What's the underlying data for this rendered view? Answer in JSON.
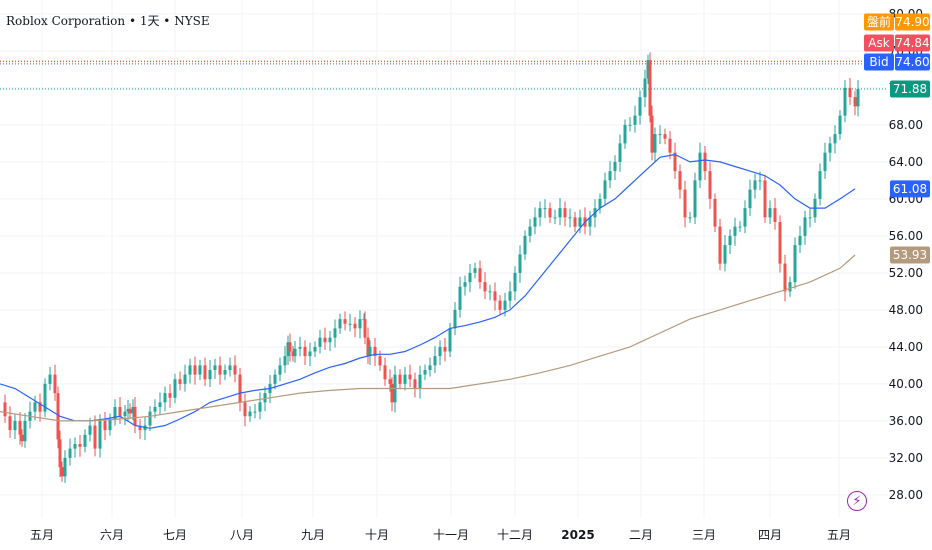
{
  "header": {
    "title": "Roblox Corporation • 1天 • NYSE"
  },
  "colors": {
    "up": "#26a69a",
    "down": "#ef5350",
    "ma_fast": "#2962ff",
    "ma_slow": "#b49a7c",
    "premarket": "#ff9800",
    "ask": "#f0515f",
    "bid": "#2962ff",
    "last": "#089981",
    "ma_fast_badge": "#2962ff",
    "ma_slow_badge": "#b49a7c"
  },
  "price_badges": [
    {
      "name": "premarket",
      "label": "盤前",
      "value": "74.90",
      "color": "#ff9800"
    },
    {
      "name": "ask",
      "label": "Ask",
      "value": "74.84",
      "color": "#f0515f"
    },
    {
      "name": "bid",
      "label": "Bid",
      "value": "74.60",
      "color": "#2962ff"
    },
    {
      "name": "last",
      "label": "",
      "value": "71.88",
      "color": "#089981"
    },
    {
      "name": "ma-fast",
      "label": "",
      "value": "61.08",
      "color": "#2962ff"
    },
    {
      "name": "ma-slow",
      "label": "",
      "value": "53.93",
      "color": "#b49a7c"
    }
  ],
  "chart_data": {
    "type": "candlestick",
    "title": "Roblox Corporation • 1天 • NYSE",
    "ylim": [
      25.5,
      81.5
    ],
    "y_ticks": [
      28,
      32,
      36,
      40,
      44,
      48,
      52,
      56,
      60,
      64,
      68,
      72,
      76,
      80
    ],
    "y_tick_labels": [
      "28.00",
      "32.00",
      "36.00",
      "40.00",
      "44.00",
      "48.00",
      "52.00",
      "56.00",
      "60.00",
      "64.00",
      "68.00",
      "72.00",
      "76.00",
      "80.00"
    ],
    "x_labels": [
      "五月",
      "六月",
      "七月",
      "八月",
      "九月",
      "十月",
      "十一月",
      "十二月",
      "2025",
      "二月",
      "三月",
      "四月",
      "五月"
    ],
    "x_label_bold_index": 8,
    "grid": true,
    "series": [
      {
        "name": "Price",
        "type": "close",
        "x": [
          0,
          5,
          10,
          15,
          20,
          22,
          25,
          30,
          35,
          40,
          45,
          50,
          55,
          58,
          60,
          62,
          65,
          70,
          75,
          80,
          85,
          90,
          95,
          100,
          105,
          110,
          115,
          120,
          125,
          128,
          130,
          133,
          135,
          140,
          145,
          150,
          155,
          160,
          165,
          170,
          175,
          180,
          185,
          190,
          195,
          200,
          205,
          210,
          215,
          220,
          225,
          230,
          235,
          240,
          245,
          250,
          255,
          260,
          265,
          270,
          275,
          280,
          285,
          288,
          290,
          293,
          295,
          300,
          305,
          310,
          315,
          320,
          325,
          330,
          335,
          340,
          345,
          350,
          355,
          360,
          364,
          365,
          368,
          370,
          375,
          380,
          385,
          390,
          392,
          395,
          400,
          405,
          410,
          415,
          420,
          425,
          430,
          435,
          440,
          445,
          450,
          455,
          460,
          465,
          470,
          475,
          480,
          485,
          490,
          495,
          500,
          505,
          510,
          515,
          520,
          525,
          530,
          535,
          540,
          545,
          550,
          555,
          560,
          565,
          570,
          575,
          580,
          585,
          590,
          595,
          600,
          605,
          610,
          615,
          620,
          625,
          630,
          635,
          640,
          645,
          648,
          650,
          652,
          655,
          660,
          665,
          670,
          675,
          680,
          685,
          690,
          695,
          700,
          705,
          710,
          715,
          720,
          725,
          730,
          735,
          740,
          745,
          750,
          755,
          760,
          765,
          770,
          775,
          780,
          785,
          790,
          795,
          800,
          805,
          810,
          815,
          820,
          825,
          830,
          835,
          840,
          845,
          850,
          855,
          858
        ],
        "y": [
          38,
          36.5,
          35,
          36,
          34.5,
          33.8,
          36,
          37,
          38,
          37,
          40,
          41,
          39,
          34,
          31,
          30,
          32,
          33,
          33.5,
          33.2,
          34.5,
          35.5,
          33,
          36,
          35,
          36.2,
          37.5,
          36.5,
          37,
          37.3,
          36.8,
          37.5,
          35.5,
          35,
          35.5,
          37,
          37.5,
          38,
          39,
          38.5,
          40.5,
          40,
          41,
          42,
          41,
          42,
          40.5,
          41.5,
          42,
          41,
          41.5,
          42,
          41,
          38,
          36.5,
          37,
          37,
          38,
          39,
          40,
          41,
          42,
          43,
          44.5,
          43.5,
          43,
          43.8,
          44,
          43,
          43.5,
          44,
          45,
          44.5,
          45,
          46,
          47,
          46.5,
          46.5,
          46,
          47,
          47,
          45,
          43,
          44,
          43,
          42,
          40.5,
          40,
          38,
          41,
          40,
          41,
          40.5,
          39.5,
          41,
          41.5,
          42,
          43,
          44,
          43.5,
          46,
          48,
          50.5,
          51,
          52,
          52.5,
          51,
          50,
          50,
          49,
          48,
          49,
          50,
          52,
          54,
          56,
          57,
          58,
          59,
          59,
          58,
          58,
          59,
          58,
          58,
          57,
          58,
          57,
          58,
          59,
          60,
          62,
          63,
          64,
          66,
          68,
          68,
          69,
          71,
          73,
          75,
          69,
          65,
          67,
          67,
          66.5,
          65,
          63,
          61,
          58,
          58,
          62,
          65,
          63,
          60,
          57,
          53,
          55,
          56,
          57,
          57,
          59,
          61,
          62,
          62,
          58,
          59,
          57.5,
          53,
          50,
          51,
          55,
          56,
          58,
          58,
          60,
          63,
          65,
          66,
          67,
          69,
          72,
          71,
          70,
          71.88
        ]
      },
      {
        "name": "MA fast",
        "type": "line",
        "x": [
          0,
          15,
          30,
          45,
          60,
          75,
          90,
          105,
          120,
          135,
          150,
          165,
          180,
          195,
          210,
          225,
          240,
          255,
          270,
          285,
          300,
          315,
          330,
          345,
          360,
          375,
          390,
          405,
          420,
          435,
          450,
          465,
          480,
          495,
          510,
          525,
          540,
          555,
          570,
          585,
          600,
          615,
          630,
          645,
          660,
          675,
          690,
          705,
          720,
          735,
          750,
          765,
          780,
          795,
          810,
          825,
          840,
          855
        ],
        "y": [
          40,
          39.5,
          38.5,
          37.5,
          36.5,
          36,
          36,
          36.2,
          36.5,
          35.5,
          35.2,
          35.5,
          36.2,
          37,
          38,
          38.5,
          39,
          39.3,
          39.5,
          40,
          40.5,
          41.2,
          41.8,
          42.2,
          42.8,
          43.2,
          43.2,
          43.5,
          44.2,
          45,
          46,
          46.3,
          46.7,
          47.2,
          48,
          49.5,
          51.5,
          53.5,
          55.5,
          57.5,
          59,
          60,
          61.5,
          63,
          64.5,
          64.8,
          64,
          64.2,
          64,
          63.5,
          63,
          62.5,
          61.5,
          60,
          59,
          59,
          60,
          61.08
        ]
      },
      {
        "name": "MA slow",
        "type": "line",
        "x": [
          0,
          30,
          60,
          90,
          120,
          150,
          180,
          210,
          240,
          270,
          300,
          330,
          360,
          390,
          420,
          450,
          480,
          510,
          540,
          570,
          600,
          630,
          660,
          690,
          720,
          750,
          780,
          810,
          840,
          855
        ],
        "y": [
          37,
          36.5,
          36,
          36,
          36.2,
          36.5,
          37,
          37.5,
          38,
          38.5,
          39,
          39.3,
          39.5,
          39.5,
          39.5,
          39.5,
          40,
          40.5,
          41.2,
          42,
          43,
          44,
          45.5,
          47,
          48,
          49,
          50,
          51,
          52.5,
          53.93
        ]
      }
    ],
    "price_lines": [
      {
        "name": "premarket",
        "value": 74.9
      },
      {
        "name": "ask",
        "value": 74.84
      },
      {
        "name": "bid",
        "value": 74.6
      },
      {
        "name": "last",
        "value": 71.88
      }
    ],
    "last_price": 71.88,
    "ma_fast_last": 61.08,
    "ma_slow_last": 53.93
  }
}
